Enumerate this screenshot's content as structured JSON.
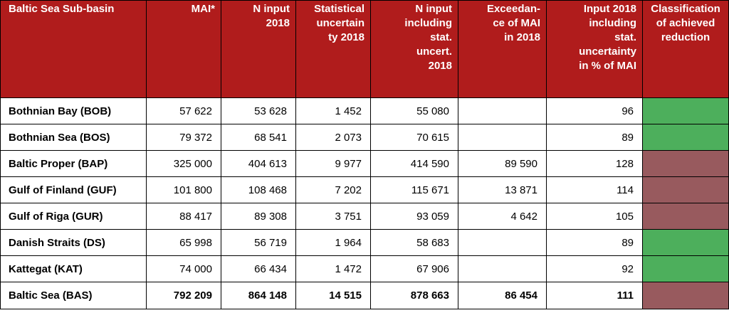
{
  "colors": {
    "header_bg": "#b01c1c",
    "header_text": "#ffffff",
    "achieved": "#4daf5c",
    "not_achieved": "#985a5e"
  },
  "headers": [
    "Baltic Sea Sub-basin",
    "MAI*",
    "N input 2018",
    "Statistical uncertainty 2018",
    "N input including stat. uncert. 2018",
    "Exceedance of MAI in 2018",
    "Input 2018 including stat. uncertainty in % of MAI",
    "Classification of achieved reduction"
  ],
  "headers_display": [
    [
      "Baltic Sea Sub-basin"
    ],
    [
      "MAI*"
    ],
    [
      "N input",
      "2018"
    ],
    [
      "Statistical",
      "uncertain",
      "ty 2018"
    ],
    [
      "N input",
      "including",
      "stat.",
      "uncert.",
      "2018"
    ],
    [
      "Exceedan-",
      "ce of  MAI",
      "in 2018"
    ],
    [
      "Input 2018",
      "including",
      "stat.",
      "uncertainty",
      "in % of MAI"
    ],
    [
      "Classification",
      "of achieved",
      "reduction"
    ]
  ],
  "rows": [
    {
      "name": "Bothnian Bay (BOB)",
      "mai": "57 622",
      "n_input": "53 628",
      "stat_unc": "1 452",
      "n_incl": "55 080",
      "exceed": "",
      "pct": "96",
      "classification": "achieved",
      "color": "#4daf5c"
    },
    {
      "name": "Bothnian Sea (BOS)",
      "mai": "79 372",
      "n_input": "68 541",
      "stat_unc": "2 073",
      "n_incl": "70 615",
      "exceed": "",
      "pct": "89",
      "classification": "achieved",
      "color": "#4daf5c"
    },
    {
      "name": "Baltic Proper (BAP)",
      "mai": "325 000",
      "n_input": "404 613",
      "stat_unc": "9 977",
      "n_incl": "414 590",
      "exceed": "89 590",
      "pct": "128",
      "classification": "not achieved",
      "color": "#985a5e"
    },
    {
      "name": "Gulf of Finland (GUF)",
      "mai": "101 800",
      "n_input": "108 468",
      "stat_unc": "7 202",
      "n_incl": "115 671",
      "exceed": "13 871",
      "pct": "114",
      "classification": "not achieved",
      "color": "#985a5e"
    },
    {
      "name": "Gulf of Riga (GUR)",
      "mai": "88 417",
      "n_input": "89 308",
      "stat_unc": "3 751",
      "n_incl": "93 059",
      "exceed": "4 642",
      "pct": "105",
      "classification": "not achieved",
      "color": "#985a5e"
    },
    {
      "name": "Danish Straits (DS)",
      "mai": "65 998",
      "n_input": "56 719",
      "stat_unc": "1 964",
      "n_incl": "58 683",
      "exceed": "",
      "pct": "89",
      "classification": "achieved",
      "color": "#4daf5c"
    },
    {
      "name": "Kattegat (KAT)",
      "mai": "74 000",
      "n_input": "66 434",
      "stat_unc": "1 472",
      "n_incl": "67 906",
      "exceed": "",
      "pct": "92",
      "classification": "achieved",
      "color": "#4daf5c"
    }
  ],
  "total": {
    "name": "Baltic Sea (BAS)",
    "mai": "792 209",
    "n_input": "864 148",
    "stat_unc": "14 515",
    "n_incl": "878 663",
    "exceed": "86 454",
    "pct": "111",
    "classification": "not achieved",
    "color": "#985a5e"
  }
}
